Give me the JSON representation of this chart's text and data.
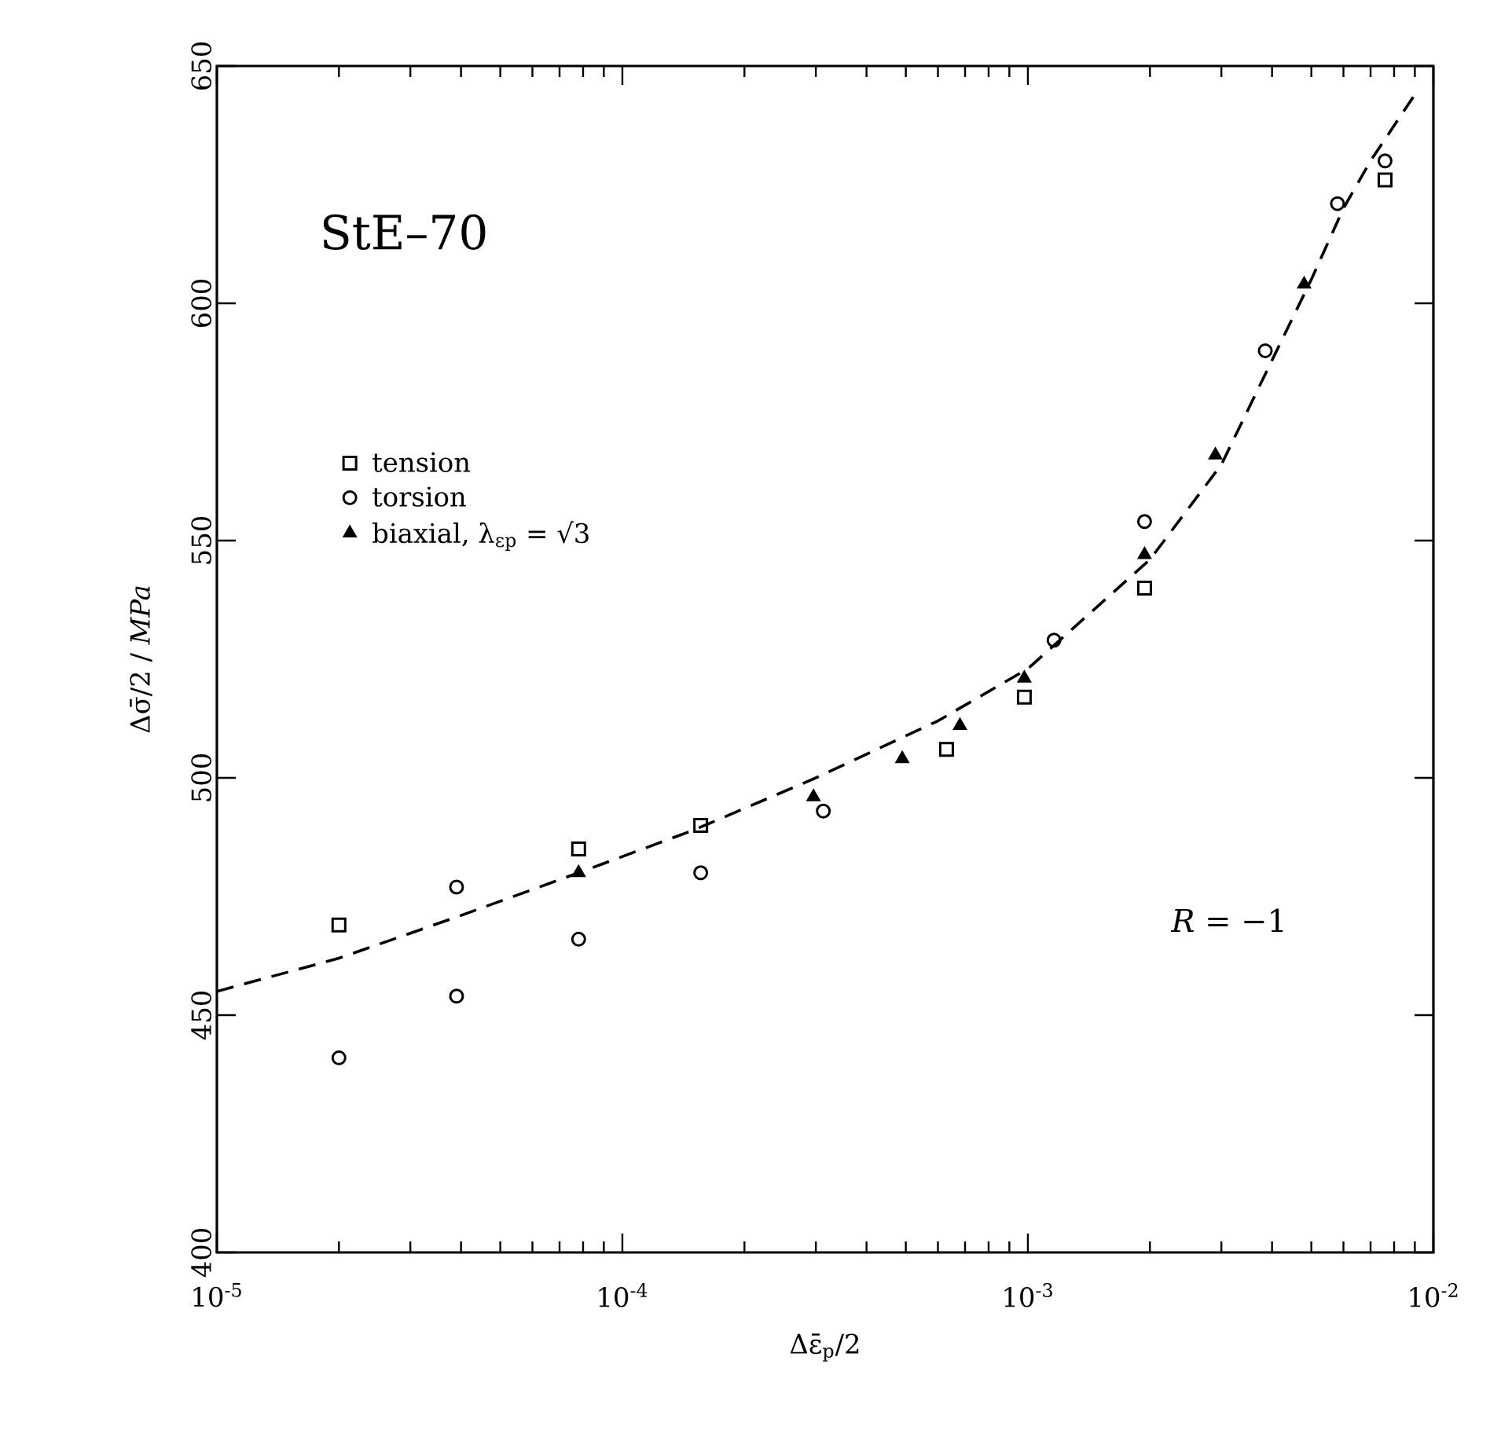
{
  "chart_data": {
    "type": "scatter",
    "xlabel": "Δε̄$_{p}$/2",
    "ylabel": "Δσ̄/2  /  *MPa*",
    "log": "x",
    "grid": false,
    "legend": "left",
    "xlim": [
      1e-05,
      0.01
    ],
    "ylim": [
      400,
      650
    ],
    "xticks": [
      {
        "value": 1e-05,
        "label": "10$^{-5}$"
      },
      {
        "value": 0.0001,
        "label": "10$^{-4}$"
      },
      {
        "value": 0.001,
        "label": "10$^{-3}$"
      },
      {
        "value": 0.01,
        "label": "10$^{-2}$"
      }
    ],
    "yticks": [
      400,
      450,
      500,
      550,
      600,
      650
    ],
    "annotations": [
      "StE–70",
      "*R*  =  −1"
    ],
    "series": [
      {
        "name": "tension",
        "color": "#000000",
        "marker": "square",
        "x": [
          2e-05,
          7.8e-05,
          0.000156,
          0.00063,
          0.00098,
          0.00194,
          0.0076
        ],
        "values": [
          469,
          485,
          490,
          506,
          517,
          540,
          626
        ]
      },
      {
        "name": "torsion",
        "color": "#000000",
        "marker": "circle",
        "x": [
          2e-05,
          3.9e-05,
          3.9e-05,
          7.8e-05,
          0.000156,
          0.000313,
          0.00116,
          0.00194,
          0.00385,
          0.0058,
          0.0076
        ],
        "values": [
          441,
          477,
          454,
          466,
          480,
          493,
          529,
          554,
          590,
          621,
          630
        ]
      },
      {
        "name": "biaxial, λ$_{εp}$ = √3",
        "color": "#000000",
        "marker": "triangle",
        "x": [
          7.8e-05,
          0.000296,
          0.00049,
          0.00068,
          0.00098,
          0.00194,
          0.0029,
          0.0048
        ],
        "values": [
          480,
          496,
          504,
          511,
          521,
          547,
          568,
          604
        ]
      },
      {
        "type": "line",
        "color": "#000000",
        "marker": "none",
        "line_style": "dashed",
        "x": [
          1e-05,
          2e-05,
          4e-05,
          7.8e-05,
          0.00015,
          0.0003,
          0.0006,
          0.001,
          0.002,
          0.003,
          0.004,
          0.005,
          0.006,
          0.007,
          0.009
        ],
        "values": [
          455,
          462,
          471,
          480,
          489,
          500,
          512,
          523,
          546,
          566,
          588,
          605,
          620,
          630,
          644
        ]
      }
    ]
  }
}
